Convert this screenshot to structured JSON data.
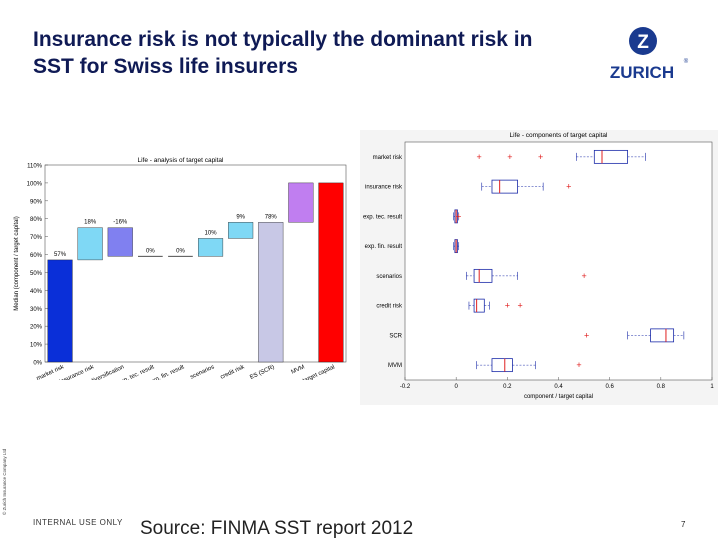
{
  "slide": {
    "title": "Insurance risk is not typically the dominant risk in SST for Swiss life insurers",
    "logo_text": "ZURICH",
    "logo_mark": "Z",
    "side_note": "© Zurich Insurance Company Ltd",
    "footer_internal": "INTERNAL USE ONLY",
    "footer_source": "Source: FINMA SST report 2012",
    "page_number": "7"
  },
  "colors": {
    "title": "#0f1a55",
    "logo": "#1a3a8f",
    "blue": "#0a2fd8",
    "cyan": "#7fd8f5",
    "violet": "#8080f0",
    "lavender": "#c8c8e6",
    "purple": "#c07ef0",
    "red": "#ff0000",
    "box": "#1a2aa8",
    "median": "#e02020"
  },
  "chart_data": [
    {
      "type": "waterfall-bar",
      "title": "Life - analysis of target capital",
      "ylabel": "Median (component / target capital)",
      "ylim": [
        0,
        110
      ],
      "yticks": [
        "0%",
        "10%",
        "20%",
        "30%",
        "40%",
        "50%",
        "60%",
        "70%",
        "80%",
        "90%",
        "100%",
        "110%"
      ],
      "categories": [
        "market risk",
        "insurance risk",
        "diversification",
        "exp. tec. result",
        "exp. fin. result",
        "scenarios",
        "credit risk",
        "ES (SCR)",
        "MVM",
        "target capital"
      ],
      "bars": [
        {
          "label": "57%",
          "bottom": 0,
          "top": 57,
          "color": "blue"
        },
        {
          "label": "18%",
          "bottom": 57,
          "top": 75,
          "color": "cyan"
        },
        {
          "label": "-16%",
          "bottom": 59,
          "top": 75,
          "color": "violet"
        },
        {
          "label": "0%",
          "bottom": 59,
          "top": 59,
          "color": "none"
        },
        {
          "label": "0%",
          "bottom": 59,
          "top": 59,
          "color": "none"
        },
        {
          "label": "10%",
          "bottom": 59,
          "top": 69,
          "color": "cyan"
        },
        {
          "label": "9%",
          "bottom": 69,
          "top": 78,
          "color": "cyan"
        },
        {
          "label": "78%",
          "bottom": 0,
          "top": 78,
          "color": "lavender"
        },
        {
          "label": "",
          "bottom": 78,
          "top": 100,
          "color": "purple"
        },
        {
          "label": "",
          "bottom": 0,
          "top": 100,
          "color": "red"
        }
      ]
    },
    {
      "type": "boxplot",
      "title": "Life - components of target capital",
      "xlabel": "component / target capital",
      "xlim": [
        -0.2,
        1
      ],
      "xticks": [
        "-0.2",
        "0",
        "0.2",
        "0.4",
        "0.6",
        "0.8",
        "1"
      ],
      "categories": [
        "market risk",
        "insurance risk",
        "exp. tec. result",
        "exp. fin. result",
        "scenarios",
        "credit risk",
        "SCR",
        "MVM"
      ],
      "boxes": [
        {
          "whisker_low": 0.47,
          "q1": 0.54,
          "median": 0.57,
          "q3": 0.67,
          "whisker_high": 0.74,
          "outliers": [
            0.09,
            0.21,
            0.33
          ]
        },
        {
          "whisker_low": 0.1,
          "q1": 0.14,
          "median": 0.17,
          "q3": 0.24,
          "whisker_high": 0.34,
          "outliers": [
            0.44
          ]
        },
        {
          "whisker_low": -0.01,
          "q1": -0.005,
          "median": 0.0,
          "q3": 0.005,
          "whisker_high": 0.01,
          "outliers": [
            0.01
          ]
        },
        {
          "whisker_low": -0.01,
          "q1": -0.005,
          "median": 0.0,
          "q3": 0.005,
          "whisker_high": 0.01,
          "outliers": []
        },
        {
          "whisker_low": 0.04,
          "q1": 0.07,
          "median": 0.09,
          "q3": 0.14,
          "whisker_high": 0.24,
          "outliers": [
            0.5
          ]
        },
        {
          "whisker_low": 0.05,
          "q1": 0.07,
          "median": 0.08,
          "q3": 0.11,
          "whisker_high": 0.13,
          "outliers": [
            0.2,
            0.25
          ]
        },
        {
          "whisker_low": 0.67,
          "q1": 0.76,
          "median": 0.82,
          "q3": 0.85,
          "whisker_high": 0.89,
          "outliers": [
            0.51
          ]
        },
        {
          "whisker_low": 0.08,
          "q1": 0.14,
          "median": 0.19,
          "q3": 0.22,
          "whisker_high": 0.31,
          "outliers": [
            0.48
          ]
        }
      ]
    }
  ]
}
